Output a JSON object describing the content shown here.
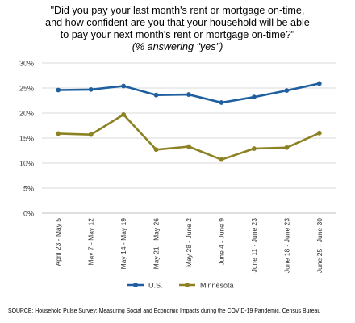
{
  "title_lines": [
    "\"Did you pay your last month's rent or mortgage on-time,",
    "and how confident are you that your household will be able",
    "to pay your next month's rent or mortgage on-time?\""
  ],
  "subtitle": "(% answering \"yes\")",
  "source": "SOURCE: Household Pulse Survey: Measuring Social and Economic Impacts during the COVID-19 Pandemic, Census Bureau",
  "chart_data": {
    "type": "line",
    "categories": [
      "April 23 - May 5",
      "May 7 - May 12",
      "May 14 - May 19",
      "May 21 - May 26",
      "May 28 - June 2",
      "June 4 - June 9",
      "June 11 - June 23",
      "June 18 - June 23",
      "June 25 - June 30"
    ],
    "series": [
      {
        "name": "U.S.",
        "color": "#1f5fa0",
        "values": [
          24.6,
          24.7,
          25.4,
          23.6,
          23.7,
          22.1,
          23.2,
          24.5,
          25.9
        ]
      },
      {
        "name": "Minnesota",
        "color": "#8c8224",
        "values": [
          15.9,
          15.7,
          19.7,
          12.7,
          13.3,
          10.7,
          12.9,
          13.1,
          16.0
        ]
      }
    ],
    "y_ticks": [
      "0%",
      "5%",
      "10%",
      "15%",
      "20%",
      "25%",
      "30%"
    ],
    "ylim": [
      0,
      30
    ],
    "grid": true,
    "legend": "bottom"
  }
}
